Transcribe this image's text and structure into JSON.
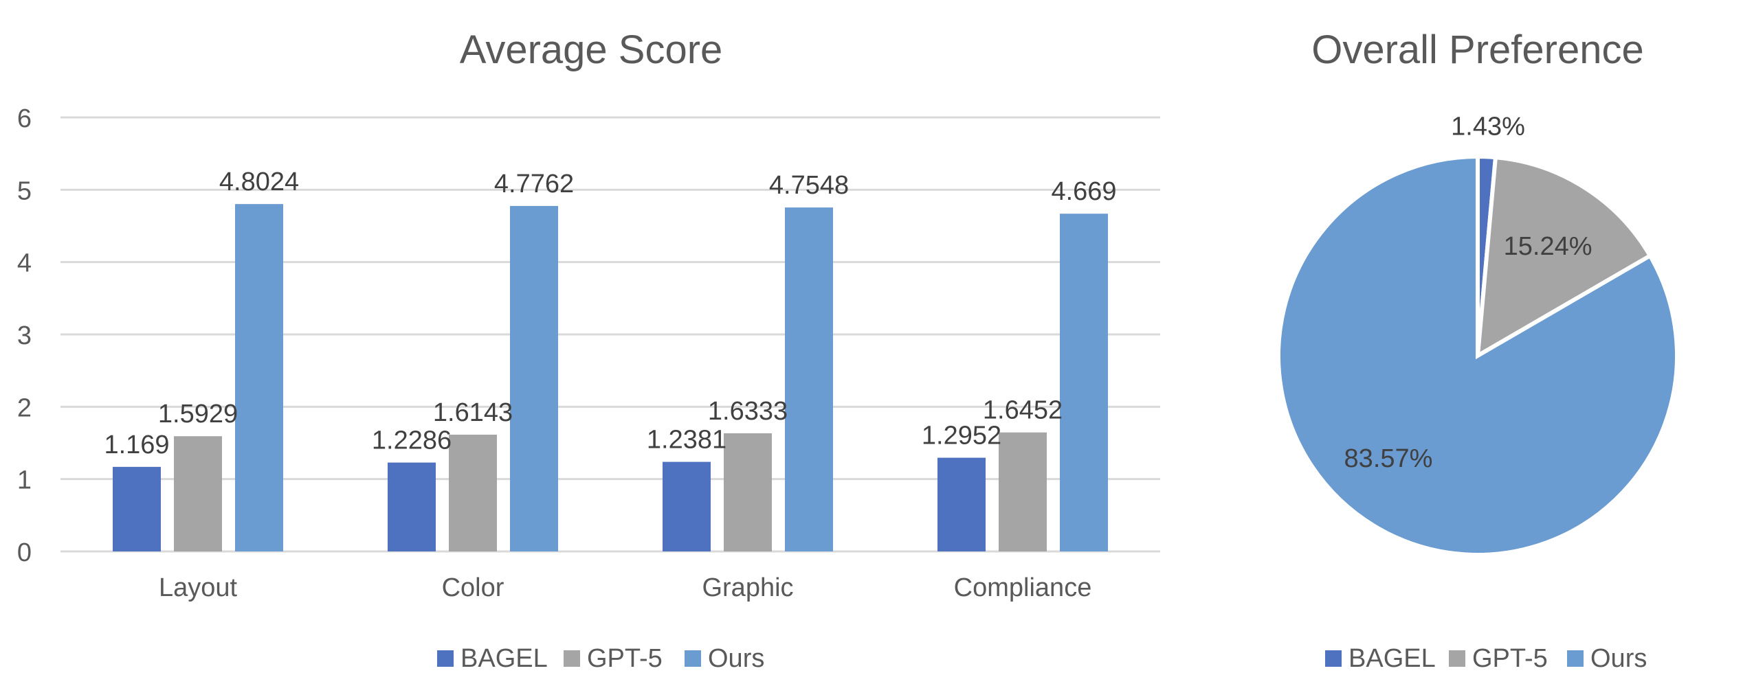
{
  "chart_data": [
    {
      "type": "bar",
      "title": "Average Score",
      "categories": [
        "Layout",
        "Color",
        "Graphic",
        "Compliance"
      ],
      "series": [
        {
          "name": "BAGEL",
          "values": [
            1.169,
            1.2286,
            1.2381,
            1.2952
          ],
          "labels": [
            "1.169",
            "1.2286",
            "1.2381",
            "1.2952"
          ],
          "color": "#4f72c0"
        },
        {
          "name": "GPT-5",
          "values": [
            1.5929,
            1.6143,
            1.6333,
            1.6452
          ],
          "labels": [
            "1.5929",
            "1.6143",
            "1.6333",
            "1.6452"
          ],
          "color": "#a5a5a5"
        },
        {
          "name": "Ours",
          "values": [
            4.8024,
            4.7762,
            4.7548,
            4.669
          ],
          "labels": [
            "4.8024",
            "4.7762",
            "4.7548",
            "4.669"
          ],
          "color": "#6a9bd1"
        }
      ],
      "ylim": [
        0,
        6
      ],
      "yticks": [
        "0",
        "1",
        "2",
        "3",
        "4",
        "5",
        "6"
      ],
      "grid": true,
      "legend": "bottom"
    },
    {
      "type": "pie",
      "title": "Overall Preference",
      "slices": [
        {
          "name": "BAGEL",
          "value": 1.43,
          "label": "1.43%",
          "color": "#4f72c0"
        },
        {
          "name": "GPT-5",
          "value": 15.24,
          "label": "15.24%",
          "color": "#a5a5a5"
        },
        {
          "name": "Ours",
          "value": 83.57,
          "label": "83.57%",
          "color": "#6a9bd1"
        }
      ],
      "legend": "bottom"
    }
  ]
}
